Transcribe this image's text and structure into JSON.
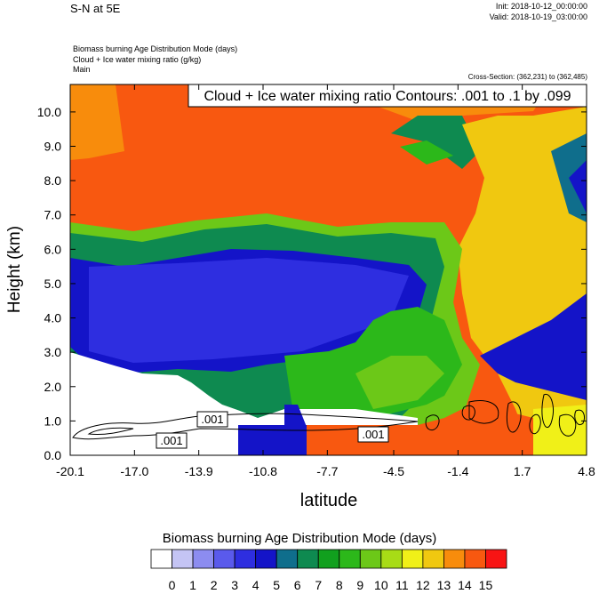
{
  "header": {
    "title": "S-N at 5E",
    "init": "Init: 2018-10-12_00:00:00",
    "valid": "Valid: 2018-10-19_03:00:00",
    "description_lines": [
      "Biomass burning Age Distribution Mode   (days)",
      "Cloud + Ice water mixing ratio   (g/kg)",
      "Main"
    ],
    "cross_section": "Cross-Section: (362,231) to (362,485)"
  },
  "chart_data": {
    "type": "heatmap",
    "contour_label": "Cloud + Ice water mixing ratio Contours: .001 to .1 by .099",
    "contour_value_labels": [
      ".001",
      ".001",
      ".001"
    ],
    "xlabel": "latitude",
    "ylabel": "Height (km)",
    "x_ticks": [
      "-20.1",
      "-17.0",
      "-13.9",
      "-10.8",
      "-7.7",
      "-4.5",
      "-1.4",
      "1.7",
      "4.8"
    ],
    "y_ticks": [
      "0.0",
      "1.0",
      "2.0",
      "3.0",
      "4.0",
      "5.0",
      "6.0",
      "7.0",
      "8.0",
      "9.0",
      "10.0"
    ],
    "xlim": [
      -20.1,
      4.8
    ],
    "ylim": [
      0.0,
      10.8
    ],
    "colorbar": {
      "title": "Biomass burning Age Distribution Mode  (days)",
      "labels": [
        "0",
        "1",
        "2",
        "3",
        "4",
        "5",
        "6",
        "7",
        "8",
        "9",
        "10",
        "11",
        "12",
        "13",
        "14",
        "15"
      ],
      "colors": [
        "#ffffff",
        "#c4c4f4",
        "#8c8cf0",
        "#5a5aec",
        "#2e2ee0",
        "#1414c8",
        "#0f6e8c",
        "#0e8a50",
        "#11a01e",
        "#2cb81a",
        "#6cc818",
        "#a8dc16",
        "#f0f018",
        "#f0c810",
        "#f88c0c",
        "#f85810",
        "#f81414"
      ]
    }
  }
}
